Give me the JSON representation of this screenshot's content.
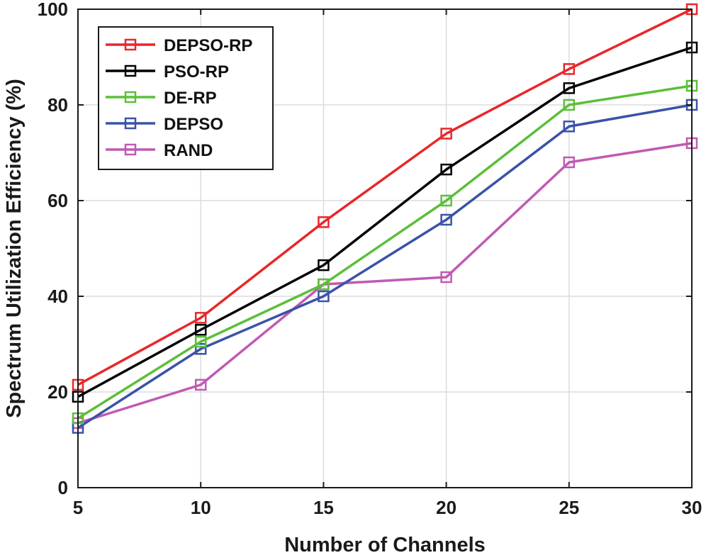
{
  "chart_data": {
    "type": "line",
    "xlabel": "Number of Channels",
    "ylabel": "Spectrum Utilization Efficiency (%)",
    "x": [
      5,
      10,
      15,
      20,
      25,
      30
    ],
    "xlim": [
      5,
      30
    ],
    "ylim": [
      0,
      100
    ],
    "xticks": [
      5,
      10,
      15,
      20,
      25,
      30
    ],
    "yticks": [
      0,
      20,
      40,
      60,
      80,
      100
    ],
    "grid": true,
    "legend_position": "top-left",
    "marker": "square",
    "series": [
      {
        "name": "DEPSO-RP",
        "color": "#e8272a",
        "values": [
          21.5,
          35.5,
          55.5,
          74,
          87.5,
          100
        ]
      },
      {
        "name": "PSO-RP",
        "color": "#000000",
        "values": [
          19,
          33,
          46.5,
          66.5,
          83.5,
          92
        ]
      },
      {
        "name": "DE-RP",
        "color": "#5cbf3a",
        "values": [
          14.5,
          30.5,
          42.5,
          60,
          80,
          84
        ]
      },
      {
        "name": "DEPSO",
        "color": "#3a52a8",
        "values": [
          12.5,
          29,
          40,
          56,
          75.5,
          80
        ]
      },
      {
        "name": "RAND",
        "color": "#c05ab2",
        "values": [
          13.5,
          21.5,
          42.5,
          44,
          68,
          72
        ]
      }
    ]
  }
}
